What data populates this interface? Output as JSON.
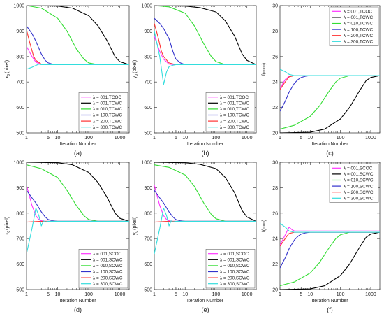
{
  "chart_data": [
    {
      "type": "line",
      "caption": "(a)",
      "xlabel": "Iteration Number",
      "ylabel_main": "x",
      "ylabel_sub": "0",
      "ylabel_unit": "(pixel)",
      "xscale": "log",
      "xlim": [
        1,
        2000
      ],
      "ylim": [
        500,
        1000
      ],
      "xticks": [
        1,
        5,
        10,
        100,
        1000
      ],
      "xtick_labels": [
        "1",
        "5",
        "10",
        "100",
        "1000"
      ],
      "yticks": [
        500,
        600,
        700,
        800,
        900,
        1000
      ],
      "ytick_labels": [
        "500",
        "600",
        "700",
        "800",
        "900",
        "1000"
      ],
      "legend_position": "bottom-right",
      "grid": false,
      "series": [
        {
          "name": "λ = 001,TCOC",
          "color": "#ff33ff",
          "x": [
            1,
            1.5,
            2,
            3,
            5,
            2000
          ],
          "y": [
            840,
            800,
            778,
            768,
            768,
            768
          ]
        },
        {
          "name": "λ = 001,TCWC",
          "color": "#000000",
          "x": [
            1,
            10,
            30,
            100,
            200,
            400,
            700,
            1000,
            2000
          ],
          "y": [
            1000,
            998,
            990,
            960,
            920,
            860,
            800,
            780,
            768
          ]
        },
        {
          "name": "λ = 010,TCWC",
          "color": "#33dd33",
          "x": [
            1,
            3,
            10,
            20,
            40,
            70,
            100,
            200,
            2000
          ],
          "y": [
            1000,
            990,
            950,
            900,
            830,
            790,
            775,
            768,
            768
          ]
        },
        {
          "name": "λ = 100,TCWC",
          "color": "#3333cc",
          "x": [
            1,
            1.5,
            2,
            3,
            4,
            5,
            7,
            10,
            2000
          ],
          "y": [
            920,
            890,
            860,
            810,
            785,
            775,
            770,
            768,
            768
          ]
        },
        {
          "name": "λ = 200,TCWC",
          "color": "#ff3333",
          "x": [
            1,
            1.3,
            1.7,
            2,
            3,
            5,
            2000
          ],
          "y": [
            905,
            850,
            800,
            785,
            770,
            768,
            768
          ]
        },
        {
          "name": "λ = 300,TCWC",
          "color": "#33dddd",
          "x": [
            1,
            1.5,
            2,
            2.5,
            3,
            4,
            5,
            2000
          ],
          "y": [
            750,
            758,
            765,
            770,
            768,
            768,
            768,
            768
          ]
        }
      ]
    },
    {
      "type": "line",
      "caption": "(b)",
      "xlabel": "Iteration Number",
      "ylabel_main": "y",
      "ylabel_sub": "0",
      "ylabel_unit": "(pixel)",
      "xscale": "log",
      "xlim": [
        1,
        2000
      ],
      "ylim": [
        500,
        1000
      ],
      "xticks": [
        1,
        5,
        10,
        100,
        1000
      ],
      "xtick_labels": [
        "1",
        "5",
        "10",
        "100",
        "1000"
      ],
      "yticks": [
        500,
        600,
        700,
        800,
        900,
        1000
      ],
      "ytick_labels": [
        "500",
        "600",
        "700",
        "800",
        "900",
        "1000"
      ],
      "legend_position": "bottom-right",
      "grid": false,
      "series": [
        {
          "name": "λ = 001,TCOC",
          "color": "#ff33ff",
          "x": [
            1,
            1.5,
            2,
            3,
            5,
            2000
          ],
          "y": [
            880,
            820,
            790,
            770,
            768,
            768
          ]
        },
        {
          "name": "λ = 001,TCWC",
          "color": "#000000",
          "x": [
            1,
            10,
            30,
            100,
            200,
            400,
            700,
            1000,
            2000
          ],
          "y": [
            1000,
            998,
            992,
            975,
            940,
            880,
            810,
            785,
            768
          ]
        },
        {
          "name": "λ = 010,TCWC",
          "color": "#33dd33",
          "x": [
            1,
            3,
            10,
            20,
            40,
            70,
            100,
            200,
            2000
          ],
          "y": [
            1000,
            995,
            970,
            920,
            850,
            800,
            780,
            768,
            768
          ]
        },
        {
          "name": "λ = 100,TCWC",
          "color": "#3333cc",
          "x": [
            1,
            1.5,
            2,
            3,
            4,
            5,
            7,
            10,
            2000
          ],
          "y": [
            950,
            930,
            910,
            870,
            820,
            790,
            775,
            768,
            768
          ]
        },
        {
          "name": "λ = 200,TCWC",
          "color": "#ff3333",
          "x": [
            1,
            1.3,
            1.7,
            2,
            3,
            5,
            2000
          ],
          "y": [
            930,
            880,
            820,
            800,
            775,
            768,
            768
          ]
        },
        {
          "name": "λ = 300,TCWC",
          "color": "#33dddd",
          "x": [
            1,
            1.5,
            2,
            2.5,
            3,
            4,
            5,
            2000
          ],
          "y": [
            900,
            800,
            690,
            740,
            760,
            766,
            768,
            768
          ]
        }
      ]
    },
    {
      "type": "line",
      "caption": "(c)",
      "xlabel": "Iteration Number",
      "ylabel_main": "f(mm)",
      "ylabel_sub": "",
      "ylabel_unit": "",
      "xscale": "log",
      "xlim": [
        1,
        2000
      ],
      "ylim": [
        20,
        30
      ],
      "xticks": [
        1,
        5,
        10,
        100,
        1000
      ],
      "xtick_labels": [
        "1",
        "5",
        "10",
        "100",
        "1000"
      ],
      "yticks": [
        20,
        22,
        24,
        26,
        28,
        30
      ],
      "ytick_labels": [
        "20",
        "22",
        "24",
        "26",
        "28",
        "30"
      ],
      "legend_position": "top-right",
      "grid": false,
      "series": [
        {
          "name": "λ = 001,TCOC",
          "color": "#ff33ff",
          "x": [
            1,
            1.5,
            2,
            3,
            2000
          ],
          "y": [
            23.5,
            24.2,
            24.45,
            24.5,
            24.5
          ]
        },
        {
          "name": "λ = 001,TCWC",
          "color": "#000000",
          "x": [
            1,
            10,
            30,
            100,
            200,
            400,
            700,
            1000,
            2000
          ],
          "y": [
            20.0,
            20.05,
            20.3,
            21.1,
            22.0,
            23.2,
            24.1,
            24.35,
            24.5
          ]
        },
        {
          "name": "λ = 010,TCWC",
          "color": "#33dd33",
          "x": [
            1,
            3,
            10,
            20,
            40,
            70,
            100,
            200,
            2000
          ],
          "y": [
            20.3,
            20.6,
            21.3,
            22.1,
            23.2,
            24.0,
            24.3,
            24.5,
            24.5
          ]
        },
        {
          "name": "λ = 100,TCWC",
          "color": "#3333cc",
          "x": [
            1,
            1.5,
            2,
            3,
            4,
            5,
            7,
            10,
            2000
          ],
          "y": [
            21.7,
            22.5,
            23.2,
            23.9,
            24.2,
            24.35,
            24.45,
            24.5,
            24.5
          ]
        },
        {
          "name": "λ = 200,TCWC",
          "color": "#ff3333",
          "x": [
            1,
            1.3,
            1.7,
            2,
            3,
            2000
          ],
          "y": [
            23.4,
            23.8,
            24.2,
            24.4,
            24.5,
            24.5
          ]
        },
        {
          "name": "λ = 300,TCWC",
          "color": "#33dddd",
          "x": [
            1,
            1.5,
            2,
            3,
            2000
          ],
          "y": [
            25.0,
            24.8,
            24.6,
            24.5,
            24.5
          ]
        }
      ]
    },
    {
      "type": "line",
      "caption": "(d)",
      "xlabel": "Iteration Number",
      "ylabel_main": "x",
      "ylabel_sub": "0",
      "ylabel_unit": "(pixel)",
      "xscale": "log",
      "xlim": [
        1,
        2000
      ],
      "ylim": [
        500,
        1000
      ],
      "xticks": [
        1,
        5,
        10,
        100,
        1000
      ],
      "xtick_labels": [
        "1",
        "5",
        "10",
        "100",
        "1000"
      ],
      "yticks": [
        500,
        600,
        700,
        800,
        900,
        1000
      ],
      "ytick_labels": [
        "500",
        "600",
        "700",
        "800",
        "900",
        "1000"
      ],
      "legend_position": "bottom-right",
      "grid": false,
      "series": [
        {
          "name": "λ = 001,SCOC",
          "color": "#ff33ff",
          "x": [
            1,
            1.5,
            2,
            2.5,
            3,
            4,
            2000
          ],
          "y": [
            910,
            830,
            790,
            775,
            770,
            768,
            768
          ]
        },
        {
          "name": "λ = 001,SCWC",
          "color": "#000000",
          "x": [
            1,
            10,
            30,
            100,
            200,
            400,
            700,
            1000,
            2000
          ],
          "y": [
            1000,
            998,
            990,
            960,
            920,
            860,
            800,
            780,
            768
          ]
        },
        {
          "name": "λ = 010,SCWC",
          "color": "#33dd33",
          "x": [
            1,
            3,
            10,
            20,
            40,
            70,
            100,
            200,
            2000
          ],
          "y": [
            990,
            975,
            940,
            890,
            830,
            790,
            775,
            768,
            768
          ]
        },
        {
          "name": "λ = 100,SCWC",
          "color": "#3333cc",
          "x": [
            1,
            1.5,
            2,
            3,
            4,
            5,
            7,
            10,
            2000
          ],
          "y": [
            890,
            860,
            840,
            805,
            785,
            775,
            770,
            768,
            768
          ]
        },
        {
          "name": "λ = 200,SCWC",
          "color": "#ff3333",
          "x": [
            1,
            2,
            3,
            2000
          ],
          "y": [
            765,
            767,
            768,
            768
          ]
        },
        {
          "name": "λ = 300,SCWC",
          "color": "#33dddd",
          "x": [
            1,
            1.5,
            2,
            2.5,
            3,
            3.5,
            4,
            5,
            2000
          ],
          "y": [
            640,
            740,
            820,
            790,
            750,
            770,
            766,
            768,
            768
          ]
        }
      ]
    },
    {
      "type": "line",
      "caption": "(e)",
      "xlabel": "Iteration Number",
      "ylabel_main": "y",
      "ylabel_sub": "0",
      "ylabel_unit": "(pixel)",
      "xscale": "log",
      "xlim": [
        1,
        2000
      ],
      "ylim": [
        500,
        1000
      ],
      "xticks": [
        1,
        5,
        10,
        100,
        1000
      ],
      "xtick_labels": [
        "1",
        "5",
        "10",
        "100",
        "1000"
      ],
      "yticks": [
        500,
        600,
        700,
        800,
        900,
        1000
      ],
      "ytick_labels": [
        "500",
        "600",
        "700",
        "800",
        "900",
        "1000"
      ],
      "legend_position": "bottom-right",
      "grid": false,
      "series": [
        {
          "name": "λ = 001,SCOC",
          "color": "#ff33ff",
          "x": [
            1,
            1.5,
            2,
            2.5,
            3,
            4,
            2000
          ],
          "y": [
            910,
            830,
            790,
            775,
            770,
            768,
            768
          ]
        },
        {
          "name": "λ = 001,SCWC",
          "color": "#000000",
          "x": [
            1,
            10,
            30,
            100,
            200,
            400,
            700,
            1000,
            2000
          ],
          "y": [
            1000,
            998,
            992,
            975,
            940,
            880,
            810,
            785,
            768
          ]
        },
        {
          "name": "λ = 010,SCWC",
          "color": "#33dd33",
          "x": [
            1,
            3,
            10,
            20,
            40,
            70,
            100,
            200,
            2000
          ],
          "y": [
            990,
            980,
            950,
            905,
            840,
            795,
            778,
            768,
            768
          ]
        },
        {
          "name": "λ = 100,SCWC",
          "color": "#3333cc",
          "x": [
            1,
            1.5,
            2,
            3,
            4,
            5,
            7,
            10,
            2000
          ],
          "y": [
            890,
            860,
            840,
            805,
            785,
            775,
            770,
            768,
            768
          ]
        },
        {
          "name": "λ = 200,SCWC",
          "color": "#ff3333",
          "x": [
            1,
            2,
            3,
            2000
          ],
          "y": [
            765,
            767,
            768,
            768
          ]
        },
        {
          "name": "λ = 300,SCWC",
          "color": "#33dddd",
          "x": [
            1,
            1.5,
            2,
            2.5,
            3,
            3.5,
            4,
            5,
            2000
          ],
          "y": [
            640,
            740,
            820,
            790,
            750,
            770,
            766,
            768,
            768
          ]
        }
      ]
    },
    {
      "type": "line",
      "caption": "(f)",
      "xlabel": "Iteration Number",
      "ylabel_main": "f(mm)",
      "ylabel_sub": "",
      "ylabel_unit": "",
      "xscale": "log",
      "xlim": [
        1,
        2000
      ],
      "ylim": [
        20,
        30
      ],
      "xticks": [
        1,
        5,
        10,
        100,
        1000
      ],
      "xtick_labels": [
        "1",
        "5",
        "10",
        "100",
        "1000"
      ],
      "yticks": [
        20,
        22,
        24,
        26,
        28,
        30
      ],
      "ytick_labels": [
        "20",
        "22",
        "24",
        "26",
        "28",
        "30"
      ],
      "legend_position": "top-right",
      "grid": false,
      "series": [
        {
          "name": "λ = 001,SCOC",
          "color": "#ff33ff",
          "x": [
            1,
            1.5,
            2,
            2.5,
            3,
            4,
            2000
          ],
          "y": [
            23.5,
            24.3,
            24.9,
            24.7,
            24.6,
            24.6,
            24.6
          ]
        },
        {
          "name": "λ = 001,SCWC",
          "color": "#000000",
          "x": [
            1,
            10,
            30,
            100,
            200,
            400,
            700,
            1000,
            2000
          ],
          "y": [
            20.0,
            20.05,
            20.3,
            21.1,
            22.0,
            23.2,
            24.1,
            24.35,
            24.5
          ]
        },
        {
          "name": "λ = 010,SCWC",
          "color": "#33dd33",
          "x": [
            1,
            3,
            10,
            20,
            40,
            70,
            100,
            200,
            2000
          ],
          "y": [
            20.3,
            20.6,
            21.3,
            22.1,
            23.2,
            24.0,
            24.3,
            24.5,
            24.5
          ]
        },
        {
          "name": "λ = 100,SCWC",
          "color": "#3333cc",
          "x": [
            1,
            1.5,
            2,
            3,
            4,
            5,
            7,
            10,
            2000
          ],
          "y": [
            21.7,
            22.5,
            23.2,
            23.9,
            24.2,
            24.35,
            24.45,
            24.5,
            24.5
          ]
        },
        {
          "name": "λ = 200,SCWC",
          "color": "#ff3333",
          "x": [
            1,
            1.3,
            1.7,
            2,
            3,
            2000
          ],
          "y": [
            23.4,
            23.8,
            24.2,
            24.4,
            24.5,
            24.5
          ]
        },
        {
          "name": "λ = 300,SCWC",
          "color": "#33dddd",
          "x": [
            1,
            1.5,
            2,
            3,
            2000
          ],
          "y": [
            25.2,
            24.9,
            24.6,
            24.5,
            24.5
          ]
        }
      ]
    }
  ]
}
